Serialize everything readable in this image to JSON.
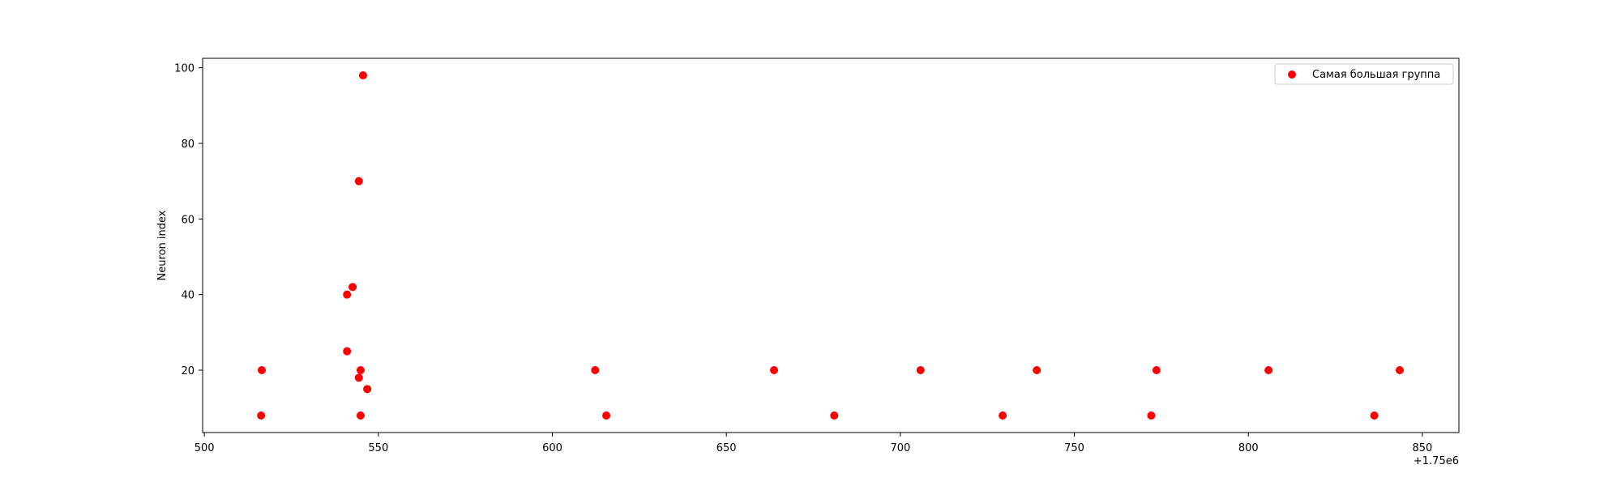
{
  "chart_data": {
    "type": "scatter",
    "title": "",
    "xlabel": "",
    "ylabel": "Neuron index",
    "x_offset_label": "+1.75e6",
    "xlim": [
      499.5,
      860.5
    ],
    "ylim": [
      3.5,
      102.5
    ],
    "xticks": [
      500,
      550,
      600,
      650,
      700,
      750,
      800,
      850
    ],
    "xtick_labels": [
      "500",
      "550",
      "600",
      "650",
      "700",
      "750",
      "800",
      "850"
    ],
    "yticks": [
      20,
      40,
      60,
      80,
      100
    ],
    "ytick_labels": [
      "20",
      "40",
      "60",
      "80",
      "100"
    ],
    "grid": false,
    "legend_position": "top-right",
    "series": [
      {
        "name": "Самая большая группа",
        "color": "#ff0000",
        "points": [
          {
            "x": 516.5,
            "y": 20
          },
          {
            "x": 516.3,
            "y": 8
          },
          {
            "x": 541.0,
            "y": 40
          },
          {
            "x": 541.0,
            "y": 25
          },
          {
            "x": 542.6,
            "y": 42
          },
          {
            "x": 544.4,
            "y": 70
          },
          {
            "x": 544.4,
            "y": 18
          },
          {
            "x": 544.9,
            "y": 20
          },
          {
            "x": 544.9,
            "y": 8
          },
          {
            "x": 545.6,
            "y": 98
          },
          {
            "x": 546.8,
            "y": 15
          },
          {
            "x": 612.3,
            "y": 20
          },
          {
            "x": 615.5,
            "y": 8
          },
          {
            "x": 663.7,
            "y": 20
          },
          {
            "x": 681.0,
            "y": 8
          },
          {
            "x": 705.8,
            "y": 20
          },
          {
            "x": 729.4,
            "y": 8
          },
          {
            "x": 739.2,
            "y": 20
          },
          {
            "x": 772.1,
            "y": 8
          },
          {
            "x": 773.6,
            "y": 20
          },
          {
            "x": 805.8,
            "y": 20
          },
          {
            "x": 836.2,
            "y": 8
          },
          {
            "x": 843.5,
            "y": 20
          }
        ]
      }
    ]
  }
}
